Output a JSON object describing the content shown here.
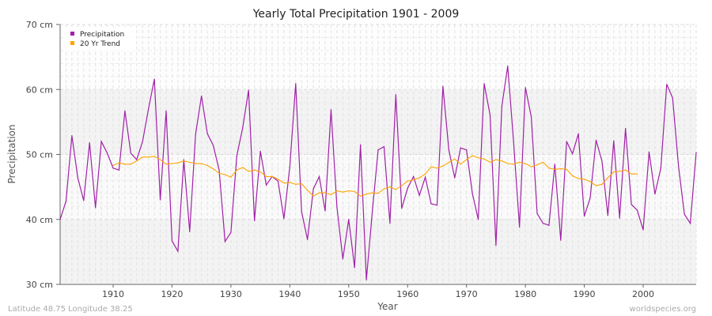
{
  "chart_data": {
    "type": "line",
    "title": "Yearly Total Precipitation 1901 - 2009",
    "xlabel": "Year",
    "ylabel": "Precipitation",
    "xlim": [
      1901,
      2009
    ],
    "ylim": [
      30,
      70
    ],
    "y_unit": "cm",
    "yticks": [
      30,
      40,
      50,
      60,
      70
    ],
    "ytick_labels": [
      "30 cm",
      "40 cm",
      "50 cm",
      "60 cm",
      "70 cm"
    ],
    "xticks": [
      1910,
      1920,
      1930,
      1940,
      1950,
      1960,
      1970,
      1980,
      1990,
      2000
    ],
    "grid": true,
    "legend_placement": "top-left",
    "series": [
      {
        "name": "Precipitation",
        "color": "#a020a8",
        "x_start": 1901,
        "values": [
          40.0,
          42.8,
          52.9,
          46.4,
          42.9,
          51.8,
          41.8,
          52.0,
          50.2,
          47.9,
          47.6,
          56.7,
          50.2,
          49.2,
          52.0,
          57.0,
          61.6,
          43.0,
          56.7,
          36.7,
          35.1,
          49.2,
          38.1,
          53.1,
          59.0,
          53.2,
          51.4,
          47.6,
          36.6,
          38.0,
          49.8,
          54.1,
          59.9,
          39.8,
          50.5,
          45.3,
          46.6,
          45.9,
          40.1,
          48.1,
          60.9,
          41.2,
          36.9,
          44.7,
          46.6,
          41.3,
          56.9,
          41.9,
          33.9,
          40.0,
          32.6,
          51.5,
          30.7,
          41.1,
          50.7,
          51.2,
          39.4,
          59.2,
          41.7,
          44.8,
          46.6,
          43.7,
          46.5,
          42.4,
          42.2,
          60.5,
          50.7,
          46.4,
          51.0,
          50.7,
          44.0,
          40.0,
          60.9,
          56.1,
          36.0,
          57.4,
          63.6,
          51.9,
          38.8,
          60.3,
          55.8,
          40.9,
          39.4,
          39.1,
          48.5,
          36.8,
          52.0,
          50.1,
          53.2,
          40.5,
          43.3,
          52.2,
          49.0,
          40.6,
          52.1,
          40.2,
          54.0,
          42.3,
          41.4,
          38.4,
          50.4,
          43.9,
          47.9,
          60.8,
          58.7,
          48.2,
          40.8,
          39.4,
          50.3
        ]
      },
      {
        "name": "20 Yr Trend",
        "color": "#ffa500",
        "x_start": 1910,
        "values": [
          48.3,
          48.7,
          48.5,
          48.5,
          49.0,
          49.6,
          49.6,
          49.7,
          49.2,
          48.5,
          48.6,
          48.7,
          49.0,
          48.8,
          48.6,
          48.6,
          48.3,
          47.8,
          47.1,
          46.9,
          46.5,
          47.6,
          48.0,
          47.4,
          47.6,
          47.3,
          46.6,
          46.6,
          46.2,
          45.6,
          45.7,
          45.4,
          45.5,
          44.5,
          43.6,
          44.1,
          44.1,
          43.8,
          44.4,
          44.2,
          44.4,
          44.3,
          43.6,
          43.9,
          44.1,
          44.0,
          44.7,
          45.0,
          44.6,
          45.2,
          45.9,
          46.1,
          46.4,
          47.0,
          48.1,
          47.9,
          48.2,
          48.8,
          49.3,
          48.5,
          49.2,
          49.8,
          49.5,
          49.3,
          48.8,
          49.2,
          49.0,
          48.6,
          48.5,
          48.8,
          48.6,
          48.1,
          48.4,
          48.8,
          47.9,
          47.7,
          47.8,
          47.7,
          46.7,
          46.3,
          46.2,
          45.8,
          45.2,
          45.4,
          46.4,
          47.3,
          47.4,
          47.6,
          47.0,
          47.0
        ]
      }
    ]
  },
  "footer": {
    "location": "Latitude 48.75 Longitude 38.25",
    "credit": "worldspecies.org"
  }
}
